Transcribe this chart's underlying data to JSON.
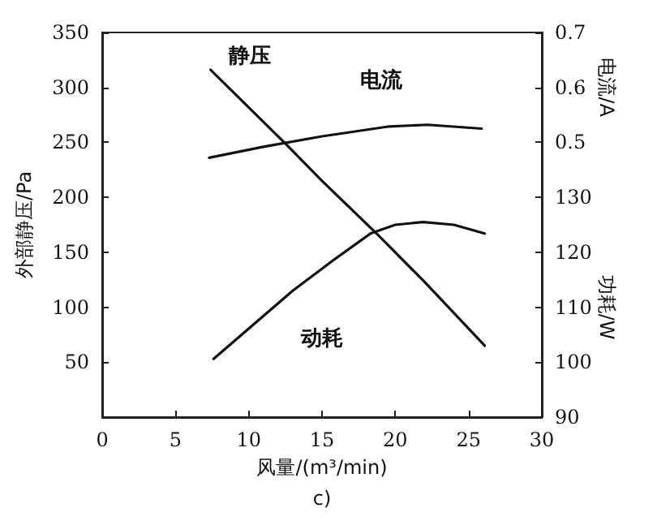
{
  "chart_data": {
    "type": "line",
    "xlabel": "风量/(m³/min)",
    "ylabel": "外部静压/Pa",
    "y2label": "电流/A",
    "y3label": "功耗/W",
    "annotations": [
      "c)"
    ],
    "xlim": [
      0,
      30
    ],
    "xticks": [
      0,
      5,
      10,
      15,
      20,
      25,
      30
    ],
    "ylim": [
      0,
      350
    ],
    "yticks": [
      50,
      100,
      150,
      200,
      250,
      300,
      350
    ],
    "y2lim": [
      0,
      0.7
    ],
    "y2ticks": [
      0.5,
      0.6,
      0.7
    ],
    "y3lim": [
      90,
      160
    ],
    "y3ticks": [
      90,
      100,
      110,
      120,
      130
    ],
    "grid": false,
    "legend": false,
    "marker": "none",
    "line_style": "solid",
    "series": [
      {
        "name": "静压",
        "color": "#111111",
        "x": [
          7.4,
          12.5,
          15,
          18.8,
          22,
          26.1
        ],
        "values": [
          316,
          249,
          215,
          166,
          123,
          65
        ]
      },
      {
        "name": "电流",
        "color": "#111111",
        "axis": "y2",
        "x": [
          7.3,
          11,
          15,
          19.6,
          22.2,
          25.9
        ],
        "values": [
          0.472,
          0.492,
          0.511,
          0.529,
          0.532,
          0.525
        ]
      },
      {
        "name": "动耗",
        "color": "#111111",
        "axis": "y3",
        "x": [
          7.6,
          13,
          15.8,
          18.3,
          20,
          21.9,
          24,
          26.1
        ],
        "values": [
          100.6,
          113,
          118.6,
          123.4,
          125,
          125.5,
          125,
          123.4
        ]
      }
    ]
  }
}
